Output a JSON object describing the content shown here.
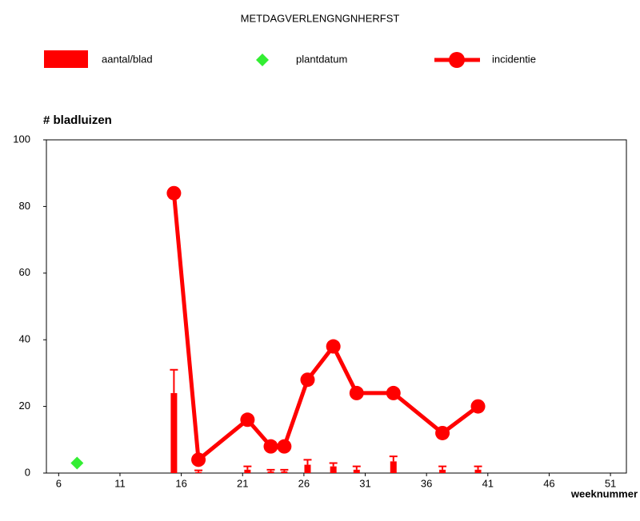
{
  "chart_data": {
    "type": "combo",
    "title": "METDAGVERLENGNGNHERFST",
    "y_label": "# bladluizen",
    "x_label": "weeknummer",
    "xlim": [
      5,
      52.3
    ],
    "xticks": [
      6,
      11,
      16,
      21,
      26,
      31,
      36,
      41,
      46,
      51
    ],
    "ylim": [
      0,
      100
    ],
    "yticks": [
      0,
      20,
      40,
      60,
      80,
      100
    ],
    "series": [
      {
        "name": "aantal/blad",
        "type": "bar",
        "color": "#ff0000",
        "x": [
          15.4,
          17.4,
          21.4,
          23.3,
          24.4,
          26.3,
          28.4,
          30.3,
          33.3,
          37.3,
          40.2
        ],
        "values": [
          24,
          0.3,
          1,
          0.5,
          0.5,
          2.5,
          2,
          1,
          3.5,
          1,
          1
        ],
        "errors": [
          7,
          0.5,
          1,
          0.5,
          0.5,
          1.5,
          1,
          1,
          1.5,
          1,
          1
        ]
      },
      {
        "name": "plantdatum",
        "type": "scatter",
        "color": "#33ee33",
        "x": [
          7.5
        ],
        "values": [
          3
        ]
      },
      {
        "name": "incidentie",
        "type": "line",
        "color": "#ff0000",
        "x": [
          15.4,
          17.4,
          21.4,
          23.3,
          24.4,
          26.3,
          28.4,
          30.3,
          33.3,
          37.3,
          40.2
        ],
        "values": [
          84,
          4,
          16,
          8,
          8,
          28,
          38,
          24,
          24,
          12,
          20
        ]
      }
    ]
  }
}
